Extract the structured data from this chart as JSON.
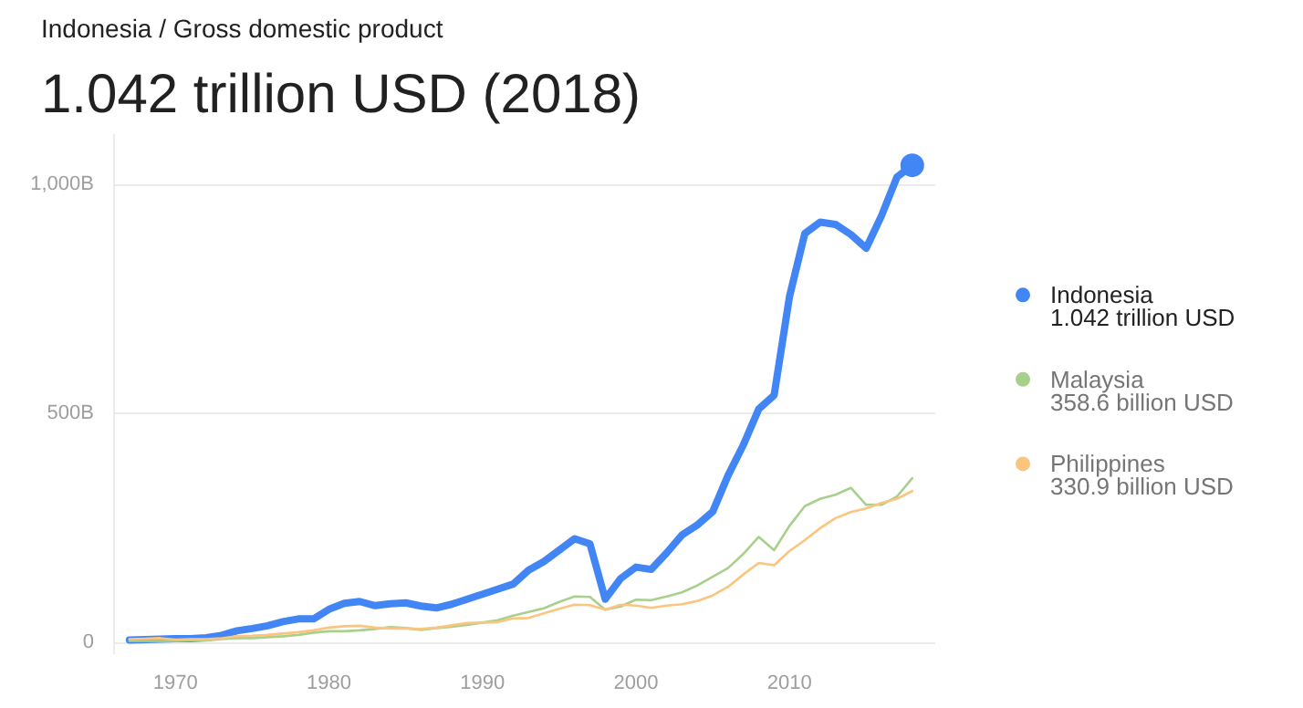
{
  "chart_data": {
    "type": "line",
    "title": "1.042 trillion USD (2018)",
    "subtitle": "Indonesia / Gross domestic product",
    "x": [
      1967,
      1968,
      1969,
      1970,
      1971,
      1972,
      1973,
      1974,
      1975,
      1976,
      1977,
      1978,
      1979,
      1980,
      1981,
      1982,
      1983,
      1984,
      1985,
      1986,
      1987,
      1988,
      1989,
      1990,
      1991,
      1992,
      1993,
      1994,
      1995,
      1996,
      1997,
      1998,
      1999,
      2000,
      2001,
      2002,
      2003,
      2004,
      2005,
      2006,
      2007,
      2008,
      2009,
      2010,
      2011,
      2012,
      2013,
      2014,
      2015,
      2016,
      2017,
      2018
    ],
    "series": [
      {
        "name": "Indonesia",
        "color": "#4285f4",
        "values": [
          6,
          7,
          8,
          9,
          9,
          11,
          16,
          26,
          31,
          37,
          46,
          52,
          52,
          73,
          86,
          90,
          81,
          85,
          87,
          80,
          76,
          84,
          95,
          106,
          117,
          128,
          158,
          177,
          202,
          227,
          216,
          95,
          140,
          165,
          160,
          196,
          235,
          257,
          286,
          365,
          432,
          510,
          540,
          755,
          893,
          918,
          913,
          891,
          861,
          932,
          1016,
          1042
        ]
      },
      {
        "name": "Malaysia",
        "color": "#a8d08d",
        "values": [
          4,
          4,
          4,
          4,
          5,
          5,
          8,
          10,
          10,
          12,
          14,
          17,
          22,
          25,
          25,
          27,
          30,
          34,
          32,
          28,
          32,
          35,
          39,
          44,
          49,
          59,
          67,
          75,
          89,
          101,
          100,
          72,
          79,
          94,
          93,
          101,
          110,
          125,
          144,
          163,
          194,
          231,
          202,
          255,
          298,
          314,
          323,
          338,
          301,
          301,
          319,
          359
        ]
      },
      {
        "name": "Philippines",
        "color": "#fbc57f",
        "values": [
          8,
          9,
          10,
          7,
          8,
          8,
          10,
          14,
          15,
          17,
          20,
          23,
          27,
          33,
          36,
          37,
          33,
          31,
          31,
          30,
          33,
          38,
          43,
          44,
          45,
          53,
          54,
          64,
          74,
          83,
          82,
          72,
          83,
          81,
          76,
          81,
          84,
          91,
          103,
          122,
          149,
          174,
          169,
          200,
          224,
          250,
          272,
          285,
          293,
          305,
          314,
          331
        ]
      },
      {
        "type": "scatter",
        "color": "#4285f4",
        "x": [
          2018
        ],
        "values": [
          1042
        ]
      }
    ],
    "annotations": [
      "1.042 trillion USD",
      "358.6 billion USD",
      "330.9 billion USD"
    ],
    "xlim": [
      1966,
      2019.5
    ],
    "ylim": [
      -25,
      1110
    ],
    "xticks": [
      1970,
      1980,
      1990,
      2000,
      2010
    ],
    "yticks": [
      0,
      {
        "value": 500,
        "label": "500B"
      },
      {
        "value": 1000,
        "label": "1,000B"
      }
    ],
    "grid": "y",
    "legend": "right"
  }
}
